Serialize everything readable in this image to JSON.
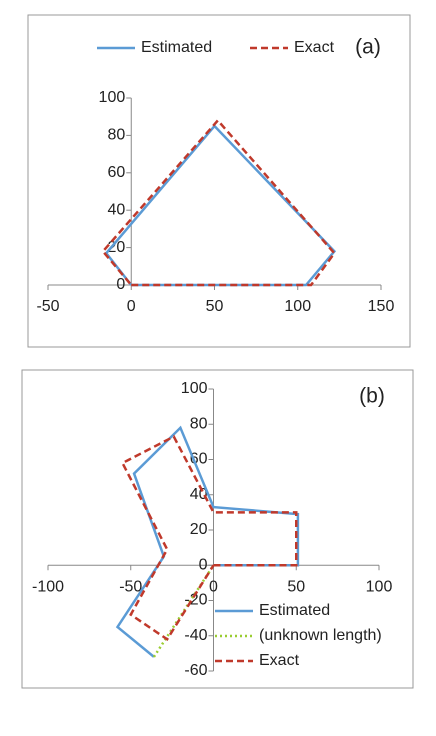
{
  "chart_data": [
    {
      "type": "line",
      "annotation": "(a)",
      "legend": "top",
      "grid": false,
      "xlim": [
        -50,
        150
      ],
      "xticks": [
        -50,
        0,
        50,
        100,
        150
      ],
      "ylim": [
        0,
        100
      ],
      "yticks": [
        0,
        20,
        40,
        60,
        80,
        100
      ],
      "series": [
        {
          "name": "Estimated",
          "color": "#5b9bd5",
          "style": "solid",
          "x": [
            0,
            105,
            122,
            50,
            -15,
            0
          ],
          "values": [
            0,
            0,
            18,
            85,
            17,
            0
          ]
        },
        {
          "name": "Exact",
          "color": "#c0392b",
          "style": "dashed",
          "x": [
            0,
            108,
            122,
            52,
            -17,
            0
          ],
          "values": [
            0,
            0,
            17,
            88,
            18,
            0
          ]
        }
      ]
    },
    {
      "type": "line",
      "annotation": "(b)",
      "legend": "bottom-right",
      "grid": false,
      "xlim": [
        -100,
        100
      ],
      "xticks": [
        -100,
        -50,
        0,
        50,
        100
      ],
      "ylim": [
        -60,
        100
      ],
      "yticks": [
        -60,
        -40,
        -20,
        0,
        20,
        40,
        60,
        80,
        100
      ],
      "series": [
        {
          "name": "Estimated",
          "color": "#5b9bd5",
          "style": "solid",
          "x": [
            0,
            51,
            51,
            0,
            -20,
            -48,
            -30,
            -58,
            -36
          ],
          "values": [
            0,
            0,
            29,
            33,
            78,
            52,
            5,
            -35,
            -52
          ]
        },
        {
          "name": "(unknown length)",
          "color": "#9acd32",
          "style": "dotted",
          "x": [
            -36,
            0
          ],
          "values": [
            -52,
            0
          ]
        },
        {
          "name": "Exact",
          "color": "#c0392b",
          "style": "dashed",
          "x": [
            0,
            50,
            50,
            0,
            -24,
            -55,
            -28,
            -50,
            -28,
            0
          ],
          "values": [
            0,
            0,
            30,
            30,
            73,
            58,
            9,
            -28,
            -42,
            0
          ]
        }
      ]
    }
  ]
}
